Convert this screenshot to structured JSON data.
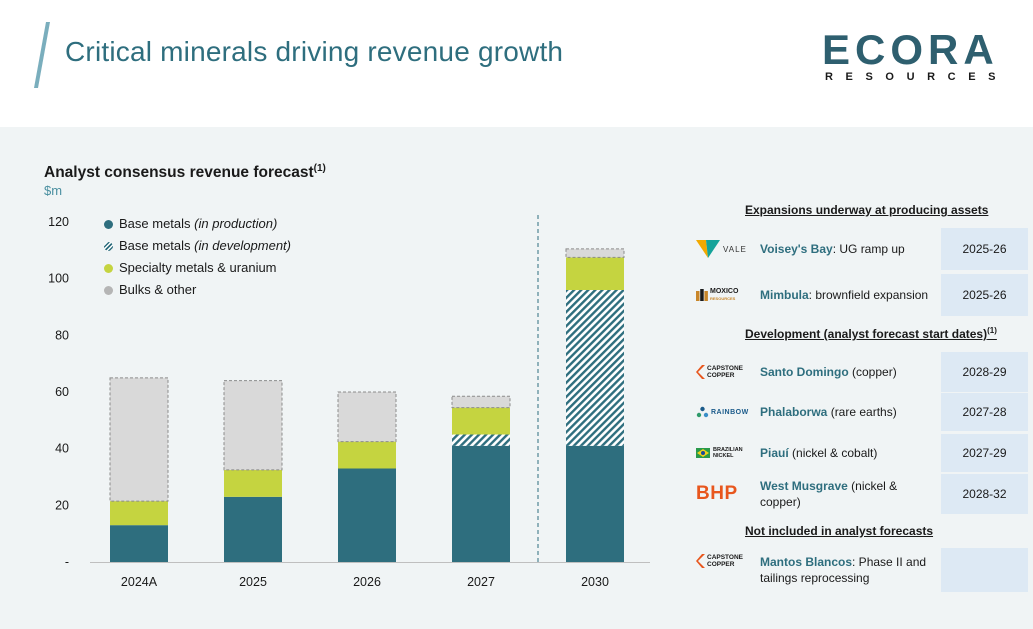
{
  "header": {
    "title": "Critical minerals driving revenue growth",
    "logo": {
      "main": "ECORA",
      "sub": "RESOURCES"
    }
  },
  "chart": {
    "title": "Analyst consensus revenue forecast",
    "title_note": "(1)",
    "unit": "$m"
  },
  "legend": [
    {
      "label": "Base metals",
      "note": "(in production)"
    },
    {
      "label": "Base metals",
      "note": "(in development)"
    },
    {
      "label": "Specialty metals & uranium",
      "note": ""
    },
    {
      "label": "Bulks & other",
      "note": ""
    }
  ],
  "chart_data": {
    "type": "bar",
    "stacked": true,
    "categories": [
      "2024A",
      "2025",
      "2026",
      "2027",
      "2030"
    ],
    "series": [
      {
        "name": "Base metals (in production)",
        "color": "#2e6e7e",
        "pattern": "solid",
        "values": [
          13,
          23,
          33,
          41,
          41
        ]
      },
      {
        "name": "Base metals (in development)",
        "color": "#2e6e7e",
        "pattern": "hatched",
        "values": [
          0,
          0,
          0,
          4,
          55
        ]
      },
      {
        "name": "Specialty metals & uranium",
        "color": "#c5d440",
        "pattern": "solid",
        "values": [
          8.5,
          9.5,
          9.5,
          9.5,
          11.5
        ]
      },
      {
        "name": "Bulks & other",
        "color": "#d9d9d9",
        "pattern": "dashed-outline",
        "values": [
          43.5,
          31.5,
          17.5,
          4,
          3
        ]
      }
    ],
    "yticks": [
      "-",
      "20",
      "40",
      "60",
      "80",
      "100",
      "120"
    ],
    "ylim": [
      0,
      120
    ],
    "divider_before": "2030",
    "grid": false,
    "legend_position": "top-left"
  },
  "right_panel": {
    "sections": [
      {
        "heading": "Expansions underway at producing assets",
        "heading_note": "",
        "rows": [
          {
            "logo": "vale-logo",
            "logo_text": "VALE",
            "asset": "Voisey's Bay",
            "detail": ": UG ramp up",
            "date": "2025-26"
          },
          {
            "logo": "moxico-logo",
            "logo_text": "MOXICO",
            "logo_subtext": "RESOURCES",
            "asset": "Mimbula",
            "detail": ": brownfield expansion",
            "date": "2025-26"
          }
        ]
      },
      {
        "heading": "Development (analyst forecast start dates)",
        "heading_note": "(1)",
        "rows": [
          {
            "logo": "capstone-logo",
            "logo_text": "CAPSTONE",
            "logo_subtext": "COPPER",
            "asset": "Santo Domingo",
            "detail": " (copper)",
            "date": "2028-29"
          },
          {
            "logo": "rainbow-logo",
            "logo_text": "RAINBOW",
            "asset": "Phalaborwa",
            "detail": " (rare earths)",
            "date": "2027-28"
          },
          {
            "logo": "brazilian-nickel-logo",
            "logo_text": "BRAZILIAN",
            "logo_subtext": "NICKEL",
            "asset": "Piauí",
            "detail": " (nickel & cobalt)",
            "date": "2027-29"
          },
          {
            "logo": "bhp-logo",
            "logo_text": "BHP",
            "asset": "West Musgrave",
            "detail": " (nickel & copper)",
            "date": "2028-32"
          }
        ]
      },
      {
        "heading": "Not included in analyst forecasts",
        "heading_note": "",
        "rows": [
          {
            "logo": "capstone-logo",
            "logo_text": "CAPSTONE",
            "logo_subtext": "COPPER",
            "asset": "Mantos Blancos",
            "detail": ": Phase II and tailings reprocessing",
            "date": ""
          }
        ]
      }
    ]
  }
}
